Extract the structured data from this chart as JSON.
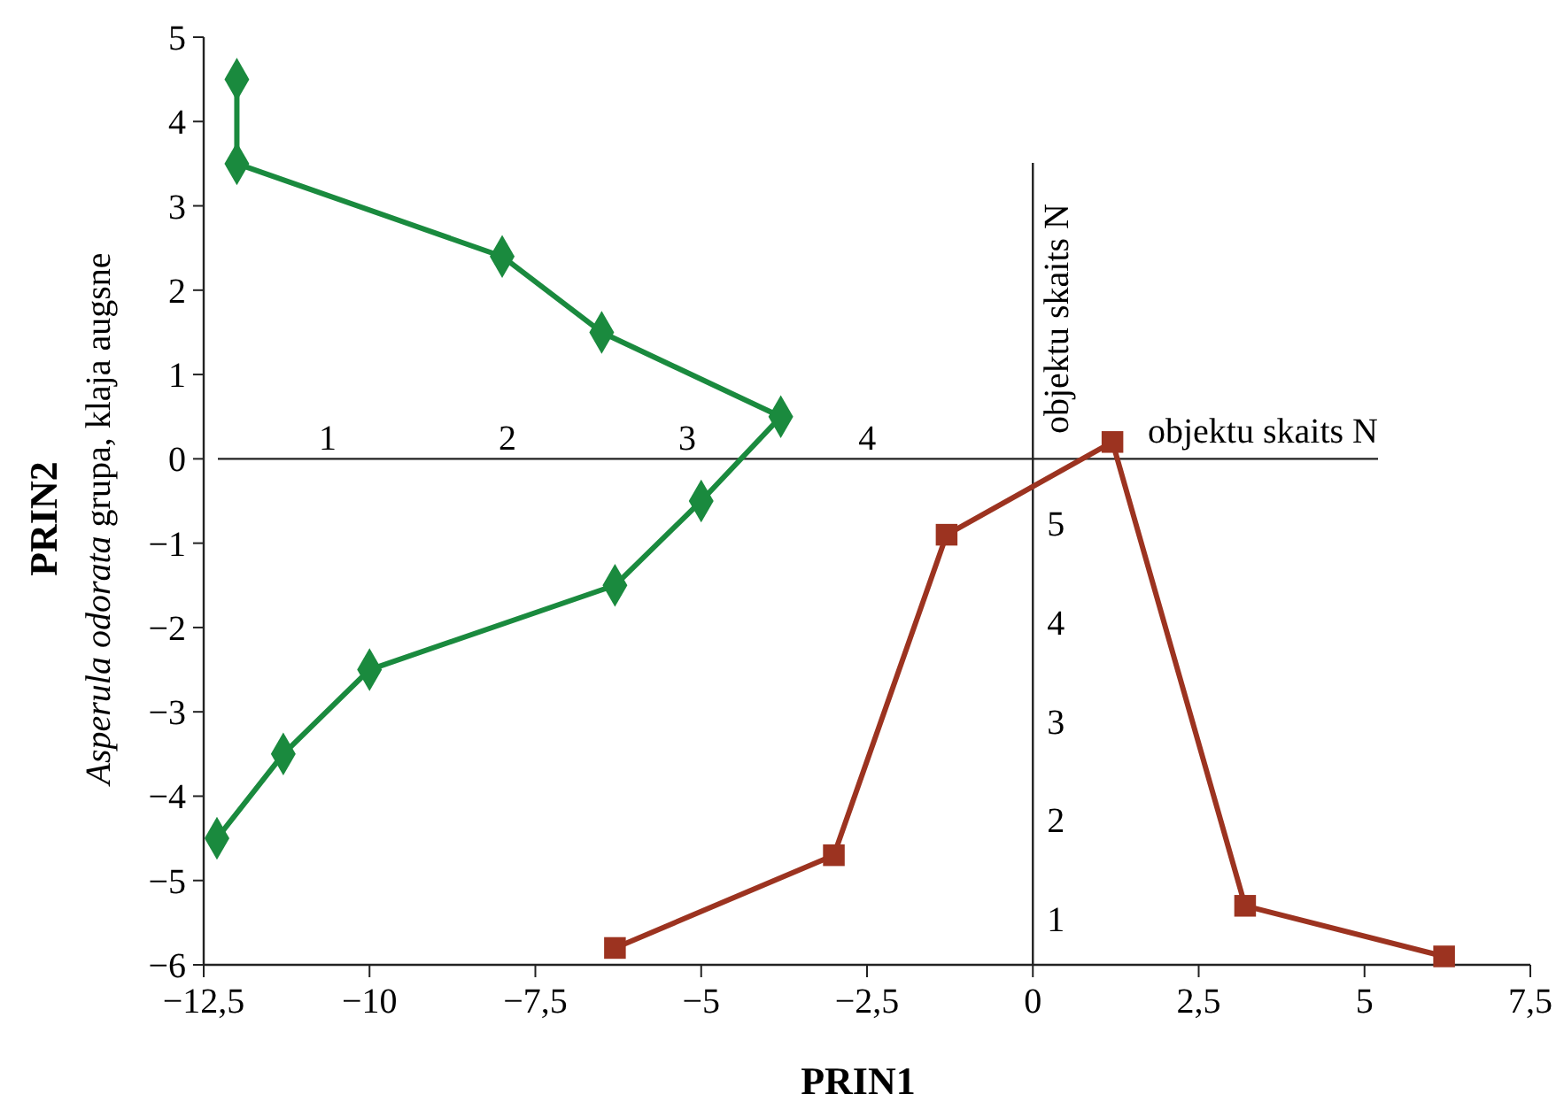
{
  "chart_data": {
    "type": "line",
    "xlabel": "PRIN1",
    "ylabel": "PRIN2",
    "annotations": [
      "Asperula odorata grupa, klaja augsne"
    ],
    "xlim": [
      -12.5,
      7.5
    ],
    "xticks": [
      {
        "value": -12.5,
        "label": "−12,5"
      },
      {
        "value": -10,
        "label": "−10"
      },
      {
        "value": -7.5,
        "label": "−7,5"
      },
      {
        "value": -5,
        "label": "−5"
      },
      {
        "value": -2.5,
        "label": "−2,5"
      },
      0,
      {
        "value": 2.5,
        "label": "2,5"
      },
      5,
      {
        "value": 7.5,
        "label": "7,5"
      }
    ],
    "ylim": [
      -6,
      5
    ],
    "yticks": [
      {
        "value": -6,
        "label": "−6"
      },
      {
        "value": -5,
        "label": "−5"
      },
      {
        "value": -4,
        "label": "−4"
      },
      {
        "value": -3,
        "label": "−3"
      },
      {
        "value": -2,
        "label": "−2"
      },
      {
        "value": -1,
        "label": "−1"
      },
      0,
      1,
      2,
      3,
      4,
      5
    ],
    "x2lim": [
      0.39,
      6.84
    ],
    "x2ticks": [
      1,
      2,
      3,
      4
    ],
    "x2label": "objektu skaits N",
    "y2lim": [
      0.54,
      8.63
    ],
    "y2ticks": [
      1,
      2,
      3,
      4,
      5
    ],
    "y2label": "objektu skaits N",
    "line_style": "solid",
    "series": [
      {
        "color": "#1a8a3e",
        "marker": "diamond",
        "x": [
          -12,
          -12,
          -8,
          -6.5,
          -3.8,
          -5,
          -6.3,
          -10,
          -11.3,
          -12.3
        ],
        "values": [
          4.5,
          3.5,
          2.4,
          1.5,
          0.5,
          -0.5,
          -1.5,
          -2.5,
          -3.5,
          -4.5
        ]
      },
      {
        "color": "#9c3320",
        "marker": "square",
        "x": [
          -6.3,
          -3,
          -1.3,
          1.2,
          3.2,
          6.2
        ],
        "values": [
          -5.8,
          -4.7,
          -0.9,
          0.2,
          -5.3,
          -5.9
        ]
      }
    ]
  }
}
